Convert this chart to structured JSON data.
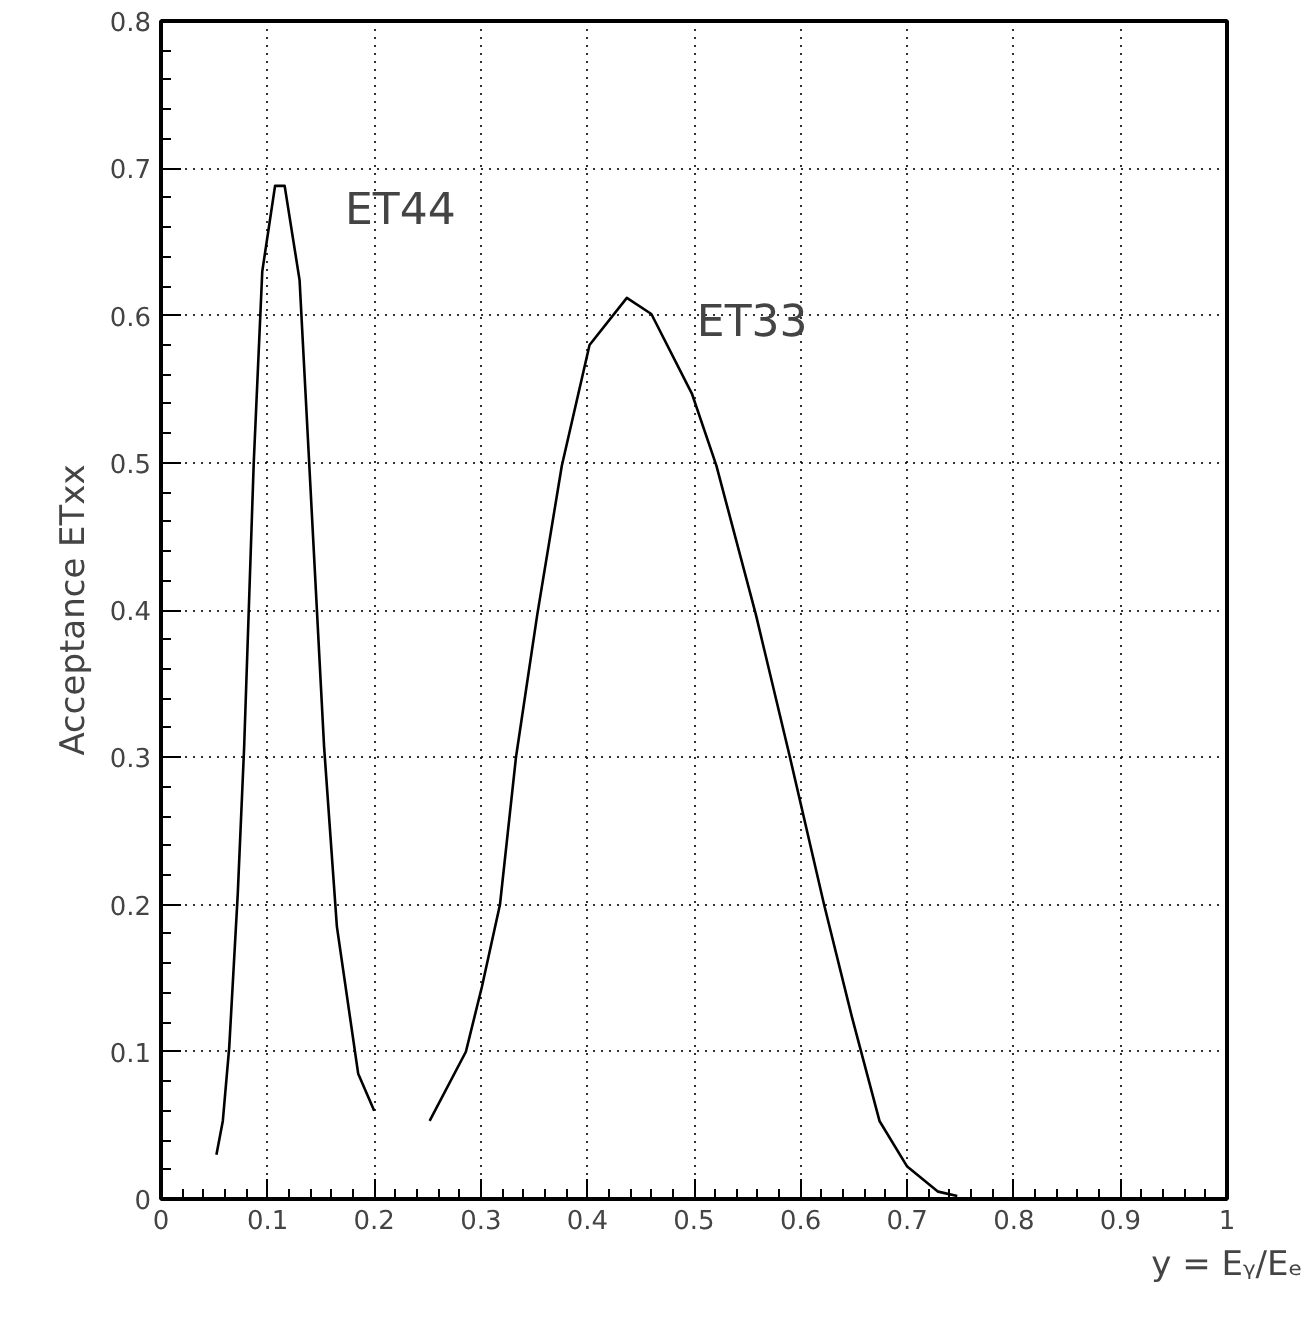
{
  "chart_data": {
    "type": "line",
    "xlabel": "y = Eᵧ/Eₑ",
    "ylabel": "Acceptance ETxx",
    "series": [
      {
        "name": "ET44",
        "color": "#000000",
        "x": [
          0.052,
          0.058,
          0.064,
          0.072,
          0.078,
          0.087,
          0.095,
          0.107,
          0.116,
          0.13,
          0.139,
          0.153,
          0.165,
          0.185,
          0.2
        ],
        "values": [
          0.03,
          0.053,
          0.103,
          0.207,
          0.307,
          0.5,
          0.63,
          0.688,
          0.688,
          0.624,
          0.5,
          0.307,
          0.185,
          0.085,
          0.06
        ]
      },
      {
        "name": "ET33",
        "color": "#000000",
        "x": [
          0.252,
          0.286,
          0.301,
          0.318,
          0.333,
          0.353,
          0.376,
          0.402,
          0.437,
          0.46,
          0.498,
          0.521,
          0.558,
          0.59,
          0.622,
          0.648,
          0.674,
          0.7,
          0.729,
          0.747
        ],
        "values": [
          0.053,
          0.1,
          0.144,
          0.2,
          0.3,
          0.397,
          0.498,
          0.58,
          0.612,
          0.601,
          0.547,
          0.498,
          0.397,
          0.3,
          0.2,
          0.124,
          0.053,
          0.022,
          0.005,
          0.002
        ]
      }
    ],
    "xlim": [
      0,
      1
    ],
    "ylim": [
      0,
      0.8
    ],
    "xticks": [
      0,
      0.1,
      0.2,
      0.3,
      0.4,
      0.5,
      0.6,
      0.7,
      0.8,
      0.9,
      1
    ],
    "yticks": [
      0,
      0.1,
      0.2,
      0.3,
      0.4,
      0.5,
      0.6,
      0.7,
      0.8
    ],
    "grid": true,
    "marker": "none",
    "line_style": "solid"
  }
}
